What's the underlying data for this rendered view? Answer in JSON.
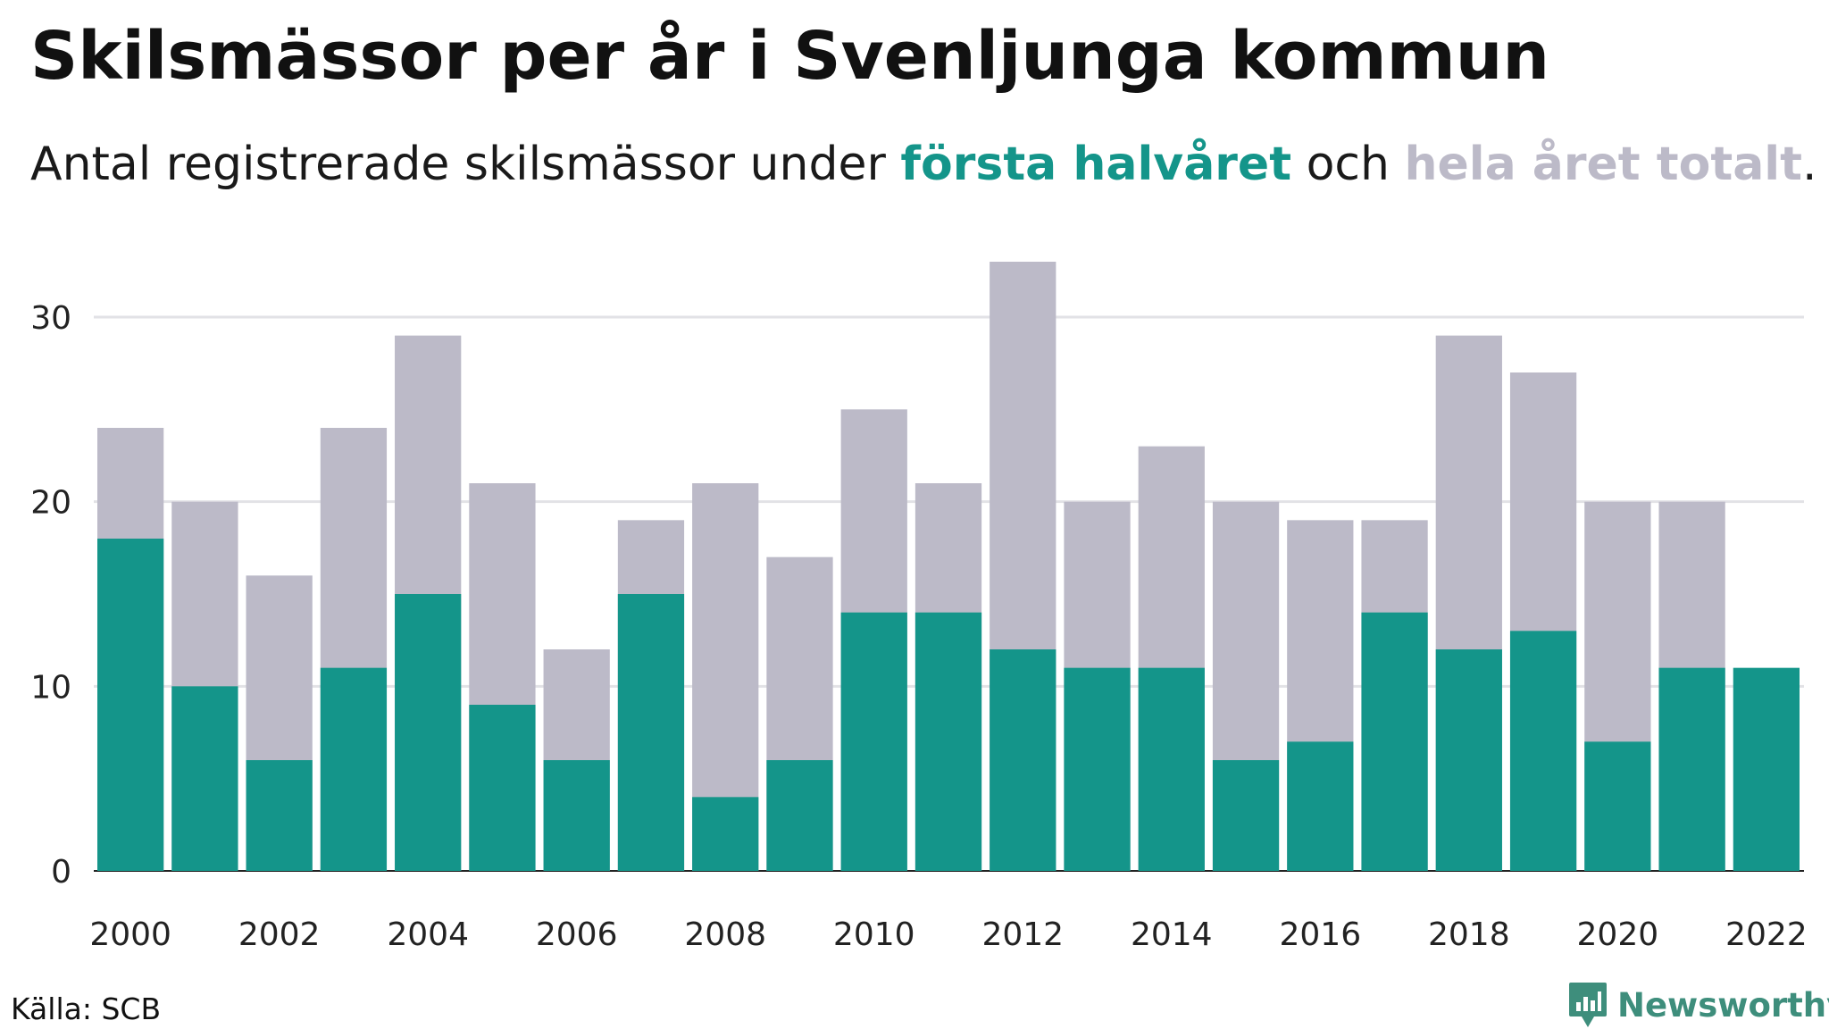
{
  "header": {
    "title": "Skilsmässor per år i Svenljunga kommun",
    "subtitle_prefix": "Antal registrerade skilsmässor under ",
    "subtitle_first": "första halvåret",
    "subtitle_middle": " och ",
    "subtitle_total": "hela året totalt",
    "subtitle_suffix": "."
  },
  "footer": {
    "source": "Källa: SCB",
    "brand": "Newsworthy"
  },
  "colors": {
    "first_half": "#14958a",
    "full_year": "#bcbac8",
    "grid": "#e2e2e6",
    "baseline": "#222222",
    "brand": "#3e8e7c"
  },
  "icons": {
    "brand_logo": "newsworthy-logo-icon"
  },
  "chart_data": {
    "type": "bar",
    "x": [
      2000,
      2001,
      2002,
      2003,
      2004,
      2005,
      2006,
      2007,
      2008,
      2009,
      2010,
      2011,
      2012,
      2013,
      2014,
      2015,
      2016,
      2017,
      2018,
      2019,
      2020,
      2021,
      2022
    ],
    "series": [
      {
        "name": "första halvåret",
        "values": [
          18,
          10,
          6,
          11,
          15,
          9,
          6,
          15,
          4,
          6,
          14,
          14,
          12,
          11,
          11,
          6,
          7,
          14,
          12,
          13,
          7,
          11,
          11
        ]
      },
      {
        "name": "hela året totalt",
        "values": [
          24,
          20,
          16,
          24,
          29,
          21,
          12,
          19,
          21,
          17,
          25,
          21,
          33,
          20,
          23,
          20,
          19,
          19,
          29,
          27,
          20,
          20,
          null
        ]
      }
    ],
    "x_tick_labels": [
      "2000",
      "2002",
      "2004",
      "2006",
      "2008",
      "2010",
      "2012",
      "2014",
      "2016",
      "2018",
      "2020",
      "2022"
    ],
    "y_ticks": [
      0,
      10,
      20,
      30
    ],
    "ylim": [
      0,
      33
    ],
    "grid": true,
    "xlabel": "",
    "ylabel": ""
  }
}
